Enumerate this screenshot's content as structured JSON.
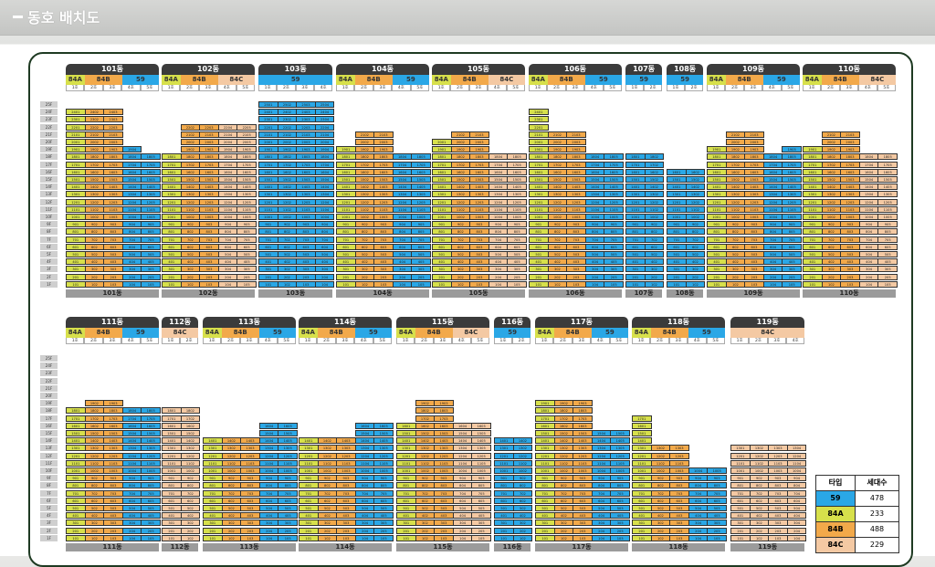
{
  "header": {
    "title": "동호 배치도"
  },
  "colors": {
    "59": "#2aa7e6",
    "84A": "#d7e04b",
    "84B": "#f2a94a",
    "84C": "#f4c9a3"
  },
  "floors_top": [
    "25F",
    "24F",
    "23F",
    "22F",
    "21F",
    "20F",
    "19F",
    "18F",
    "17F",
    "16F",
    "15F",
    "14F",
    "13F",
    "12F",
    "11F",
    "10F",
    "9F",
    "8F",
    "7F",
    "6F",
    "5F",
    "4F",
    "3F",
    "2F",
    "1F"
  ],
  "floors_bottom": [
    "25F",
    "24F",
    "23F",
    "22F",
    "21F",
    "20F",
    "19F",
    "18F",
    "17F",
    "16F",
    "15F",
    "14F",
    "13F",
    "12F",
    "11F",
    "10F",
    "9F",
    "8F",
    "7F",
    "6F",
    "5F",
    "4F",
    "3F",
    "2F",
    "1F"
  ],
  "buildings_top": [
    {
      "name": "101동",
      "types": [
        {
          "t": "84A",
          "n": 1
        },
        {
          "t": "84B",
          "n": 2
        },
        {
          "t": "59",
          "n": 2
        }
      ],
      "lines": [
        "1호",
        "2호",
        "3호",
        "4호",
        "5호"
      ],
      "floors": [
        24,
        24,
        24,
        19,
        18
      ]
    },
    {
      "name": "102동",
      "types": [
        {
          "t": "84A",
          "n": 1
        },
        {
          "t": "84B",
          "n": 2
        },
        {
          "t": "84C",
          "n": 2
        }
      ],
      "lines": [
        "1호",
        "2호",
        "3호",
        "4호",
        "5호"
      ],
      "floors": [
        18,
        22,
        22,
        22,
        22
      ]
    },
    {
      "name": "103동",
      "types": [
        {
          "t": "59",
          "n": 4
        }
      ],
      "lines": [
        "1호",
        "2호",
        "3호",
        "4호"
      ],
      "floors": [
        25,
        25,
        25,
        25
      ]
    },
    {
      "name": "104동",
      "types": [
        {
          "t": "84A",
          "n": 1
        },
        {
          "t": "84B",
          "n": 2
        },
        {
          "t": "59",
          "n": 2
        }
      ],
      "lines": [
        "1호",
        "2호",
        "3호",
        "4호",
        "5호"
      ],
      "floors": [
        19,
        21,
        21,
        18,
        18
      ]
    },
    {
      "name": "105동",
      "types": [
        {
          "t": "84A",
          "n": 1
        },
        {
          "t": "84B",
          "n": 2
        },
        {
          "t": "84C",
          "n": 2
        }
      ],
      "lines": [
        "1호",
        "2호",
        "3호",
        "4호",
        "5호"
      ],
      "floors": [
        20,
        21,
        21,
        18,
        18
      ]
    },
    {
      "name": "106동",
      "types": [
        {
          "t": "84A",
          "n": 1
        },
        {
          "t": "84B",
          "n": 2
        },
        {
          "t": "59",
          "n": 2
        }
      ],
      "lines": [
        "1호",
        "2호",
        "3호",
        "4호",
        "5호"
      ],
      "floors": [
        24,
        21,
        21,
        18,
        18
      ]
    },
    {
      "name": "107동",
      "types": [
        {
          "t": "59",
          "n": 2
        }
      ],
      "lines": [
        "1호",
        "2호"
      ],
      "floors": [
        18,
        18
      ]
    },
    {
      "name": "108동",
      "types": [
        {
          "t": "59",
          "n": 2
        }
      ],
      "lines": [
        "1호",
        "2호"
      ],
      "floors": [
        16,
        16
      ]
    },
    {
      "name": "109동",
      "types": [
        {
          "t": "84A",
          "n": 1
        },
        {
          "t": "84B",
          "n": 2
        },
        {
          "t": "59",
          "n": 2
        }
      ],
      "lines": [
        "1호",
        "2호",
        "3호",
        "4호",
        "5호"
      ],
      "floors": [
        19,
        21,
        21,
        18,
        19
      ]
    },
    {
      "name": "110동",
      "types": [
        {
          "t": "84A",
          "n": 1
        },
        {
          "t": "84B",
          "n": 2
        },
        {
          "t": "84C",
          "n": 2
        }
      ],
      "lines": [
        "1호",
        "2호",
        "3호",
        "4호",
        "5호"
      ],
      "floors": [
        19,
        21,
        21,
        18,
        18
      ]
    }
  ],
  "buildings_bottom": [
    {
      "name": "111동",
      "types": [
        {
          "t": "84A",
          "n": 1
        },
        {
          "t": "84B",
          "n": 2
        },
        {
          "t": "59",
          "n": 2
        }
      ],
      "lines": [
        "1호",
        "2호",
        "3호",
        "4호",
        "5호"
      ],
      "floors": [
        18,
        19,
        19,
        18,
        18
      ]
    },
    {
      "name": "112동",
      "types": [
        {
          "t": "84C",
          "n": 2
        }
      ],
      "lines": [
        "1호",
        "2호"
      ],
      "floors": [
        18,
        18
      ]
    },
    {
      "name": "113동",
      "types": [
        {
          "t": "84A",
          "n": 1
        },
        {
          "t": "84B",
          "n": 2
        },
        {
          "t": "59",
          "n": 2
        }
      ],
      "lines": [
        "1호",
        "2호",
        "3호",
        "4호",
        "5호"
      ],
      "floors": [
        14,
        14,
        14,
        16,
        16
      ]
    },
    {
      "name": "114동",
      "types": [
        {
          "t": "84A",
          "n": 1
        },
        {
          "t": "84B",
          "n": 2
        },
        {
          "t": "59",
          "n": 2
        }
      ],
      "lines": [
        "1호",
        "2호",
        "3호",
        "4호",
        "5호"
      ],
      "floors": [
        14,
        14,
        14,
        16,
        16
      ]
    },
    {
      "name": "115동",
      "types": [
        {
          "t": "84A",
          "n": 1
        },
        {
          "t": "84B",
          "n": 2
        },
        {
          "t": "84C",
          "n": 2
        }
      ],
      "lines": [
        "1호",
        "2호",
        "3호",
        "4호",
        "5호"
      ],
      "floors": [
        16,
        19,
        19,
        16,
        16
      ]
    },
    {
      "name": "116동",
      "types": [
        {
          "t": "59",
          "n": 2
        }
      ],
      "lines": [
        "1호",
        "2호"
      ],
      "floors": [
        14,
        14
      ]
    },
    {
      "name": "117동",
      "types": [
        {
          "t": "84A",
          "n": 1
        },
        {
          "t": "84B",
          "n": 2
        },
        {
          "t": "59",
          "n": 2
        }
      ],
      "lines": [
        "1호",
        "2호",
        "3호",
        "4호",
        "5호"
      ],
      "floors": [
        19,
        19,
        19,
        15,
        15
      ]
    },
    {
      "name": "118동",
      "types": [
        {
          "t": "84A",
          "n": 1
        },
        {
          "t": "84B",
          "n": 2
        },
        {
          "t": "59",
          "n": 2
        }
      ],
      "lines": [
        "1호",
        "2호",
        "3호",
        "4호",
        "5호"
      ],
      "floors": [
        17,
        13,
        13,
        10,
        10
      ]
    },
    {
      "name": "119동",
      "types": [
        {
          "t": "84C",
          "n": 4
        }
      ],
      "lines": [
        "1호",
        "2호",
        "3호",
        "4호"
      ],
      "floors": [
        13,
        13,
        13,
        13
      ]
    }
  ],
  "legend": {
    "header": [
      "타입",
      "세대수"
    ],
    "rows": [
      {
        "type": "59",
        "count": "478"
      },
      {
        "type": "84A",
        "count": "233"
      },
      {
        "type": "84B",
        "count": "488"
      },
      {
        "type": "84C",
        "count": "229"
      }
    ]
  }
}
